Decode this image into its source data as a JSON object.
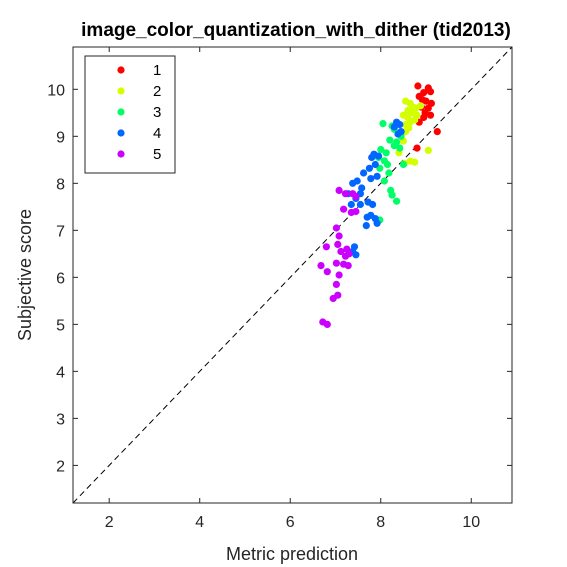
{
  "chart_data": {
    "type": "scatter",
    "title": "image_color_quantization_with_dither (tid2013)",
    "xlabel": "Metric prediction",
    "ylabel": "Subjective score",
    "xlim": [
      1.2,
      10.9
    ],
    "ylim": [
      1.2,
      10.9
    ],
    "xticks": [
      2,
      4,
      6,
      8,
      10
    ],
    "yticks": [
      2,
      3,
      4,
      5,
      6,
      7,
      8,
      9,
      10
    ],
    "grid": false,
    "legend_position": "top-left",
    "reference_line": "y = x, dashed black",
    "series": [
      {
        "name": "1",
        "color": "#ff0000",
        "points": [
          [
            8.82,
            10.07
          ],
          [
            8.95,
            9.93
          ],
          [
            9.05,
            10.03
          ],
          [
            9.1,
            9.95
          ],
          [
            8.85,
            9.85
          ],
          [
            8.92,
            9.78
          ],
          [
            9.0,
            9.75
          ],
          [
            9.12,
            9.7
          ],
          [
            8.9,
            9.62
          ],
          [
            9.05,
            9.6
          ],
          [
            8.98,
            9.5
          ],
          [
            9.1,
            9.45
          ],
          [
            8.95,
            9.4
          ],
          [
            8.85,
            9.3
          ],
          [
            9.25,
            9.1
          ],
          [
            8.8,
            8.75
          ]
        ]
      },
      {
        "name": "2",
        "color": "#d4ff00",
        "points": [
          [
            8.55,
            9.75
          ],
          [
            8.65,
            9.7
          ],
          [
            8.72,
            9.62
          ],
          [
            8.6,
            9.55
          ],
          [
            8.7,
            9.5
          ],
          [
            8.8,
            9.45
          ],
          [
            8.6,
            9.4
          ],
          [
            8.75,
            9.35
          ],
          [
            8.65,
            9.3
          ],
          [
            8.55,
            9.25
          ],
          [
            8.5,
            9.45
          ],
          [
            8.78,
            9.6
          ],
          [
            8.62,
            9.18
          ],
          [
            8.55,
            9.1
          ],
          [
            8.45,
            9.05
          ],
          [
            8.5,
            8.9
          ],
          [
            8.65,
            8.47
          ],
          [
            8.75,
            8.45
          ],
          [
            8.52,
            8.42
          ],
          [
            9.05,
            8.7
          ],
          [
            8.4,
            8.65
          ],
          [
            8.88,
            9.65
          ]
        ]
      },
      {
        "name": "3",
        "color": "#00ff66",
        "points": [
          [
            8.05,
            9.27
          ],
          [
            8.25,
            9.22
          ],
          [
            8.3,
            9.15
          ],
          [
            8.38,
            9.05
          ],
          [
            8.45,
            9.0
          ],
          [
            8.2,
            8.92
          ],
          [
            8.35,
            8.88
          ],
          [
            8.3,
            8.8
          ],
          [
            8.42,
            8.75
          ],
          [
            8.12,
            8.65
          ],
          [
            8.0,
            8.72
          ],
          [
            7.95,
            8.55
          ],
          [
            8.08,
            8.48
          ],
          [
            8.15,
            8.4
          ],
          [
            8.5,
            8.4
          ],
          [
            7.98,
            8.32
          ],
          [
            8.18,
            8.22
          ],
          [
            8.08,
            8.05
          ],
          [
            8.22,
            7.85
          ],
          [
            8.25,
            7.75
          ],
          [
            8.35,
            7.62
          ],
          [
            7.98,
            7.22
          ]
        ]
      },
      {
        "name": "4",
        "color": "#0066ff",
        "points": [
          [
            8.35,
            9.3
          ],
          [
            8.42,
            9.25
          ],
          [
            8.3,
            9.2
          ],
          [
            8.45,
            9.1
          ],
          [
            8.38,
            9.05
          ],
          [
            7.85,
            8.62
          ],
          [
            7.95,
            8.58
          ],
          [
            7.8,
            8.55
          ],
          [
            7.88,
            8.4
          ],
          [
            7.75,
            8.32
          ],
          [
            7.62,
            8.22
          ],
          [
            7.92,
            8.15
          ],
          [
            7.78,
            8.1
          ],
          [
            7.48,
            8.05
          ],
          [
            7.58,
            7.9
          ],
          [
            7.38,
            8.0
          ],
          [
            7.28,
            7.78
          ],
          [
            7.55,
            7.78
          ],
          [
            7.45,
            7.68
          ],
          [
            7.35,
            7.55
          ],
          [
            7.55,
            7.55
          ],
          [
            7.72,
            7.6
          ],
          [
            7.82,
            7.55
          ],
          [
            7.78,
            7.32
          ],
          [
            7.7,
            7.28
          ],
          [
            7.88,
            7.25
          ],
          [
            7.92,
            7.15
          ],
          [
            7.68,
            7.1
          ],
          [
            7.42,
            6.65
          ],
          [
            7.38,
            6.55
          ],
          [
            7.45,
            6.48
          ]
        ]
      },
      {
        "name": "5",
        "color": "#cc00ff",
        "points": [
          [
            7.08,
            7.85
          ],
          [
            7.22,
            7.78
          ],
          [
            7.38,
            7.78
          ],
          [
            7.45,
            7.72
          ],
          [
            7.18,
            7.45
          ],
          [
            7.35,
            7.38
          ],
          [
            7.45,
            7.4
          ],
          [
            7.02,
            7.05
          ],
          [
            7.08,
            6.88
          ],
          [
            7.05,
            6.7
          ],
          [
            6.8,
            6.65
          ],
          [
            7.12,
            6.55
          ],
          [
            7.25,
            6.6
          ],
          [
            7.3,
            6.5
          ],
          [
            7.22,
            6.45
          ],
          [
            6.68,
            6.25
          ],
          [
            7.02,
            6.3
          ],
          [
            7.18,
            6.28
          ],
          [
            7.28,
            6.25
          ],
          [
            6.82,
            6.12
          ],
          [
            7.08,
            6.05
          ],
          [
            7.02,
            5.85
          ],
          [
            7.05,
            5.62
          ],
          [
            6.95,
            5.55
          ],
          [
            6.72,
            5.05
          ],
          [
            6.82,
            5.0
          ]
        ]
      }
    ]
  }
}
